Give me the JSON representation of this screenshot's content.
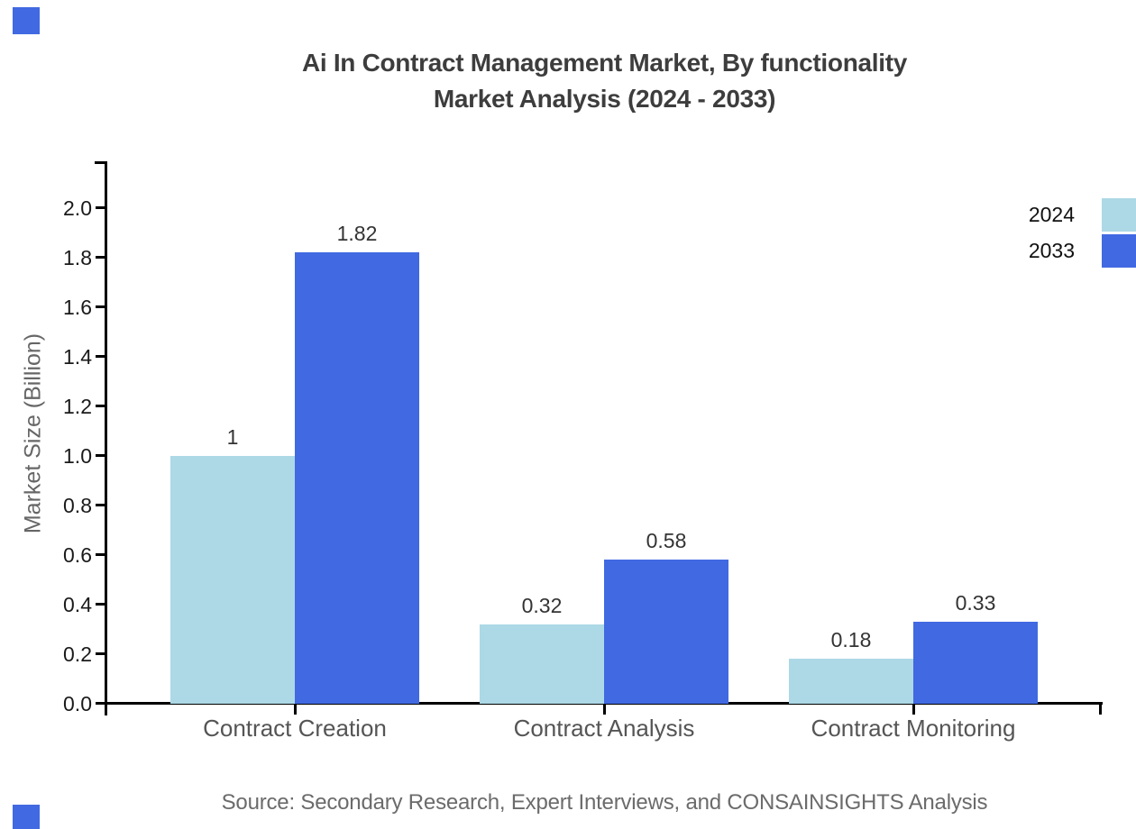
{
  "header": {
    "title_line1": "Ai In Contract Management Market, By functionality",
    "title_line2": "Market Analysis (2024 - 2033)"
  },
  "legend": {
    "position": "right-edge",
    "items": [
      {
        "label": "2024",
        "color": "#add8e6"
      },
      {
        "label": "2033",
        "color": "#4169e1"
      }
    ]
  },
  "footer": {
    "source": "Source: Secondary Research, Expert Interviews, and CONSAINSIGHTS Analysis"
  },
  "decorations": {
    "corner_square_color": "#4169e1"
  },
  "colors": {
    "series_2024": "#add8e6",
    "series_2033": "#4169e1",
    "axis": "#000000",
    "title_text": "#3d3d3d",
    "tick_label_text": "#1a1a1a",
    "category_text": "#555555",
    "value_label_text": "#333333",
    "axis_title_text": "#666666",
    "source_text": "#6b6b6b"
  },
  "chart_data": {
    "type": "bar",
    "title": "Ai In Contract Management Market, By functionality Market Analysis (2024 - 2033)",
    "categories": [
      "Contract Creation",
      "Contract Analysis",
      "Contract Monitoring"
    ],
    "series": [
      {
        "name": "2024",
        "color": "#add8e6",
        "values": [
          1,
          0.32,
          0.18
        ],
        "value_labels": [
          "1",
          "0.32",
          "0.18"
        ]
      },
      {
        "name": "2033",
        "color": "#4169e1",
        "values": [
          1.82,
          0.58,
          0.33
        ],
        "value_labels": [
          "1.82",
          "0.58",
          "0.33"
        ]
      }
    ],
    "xlabel": "",
    "ylabel": "Market Size (Billion)",
    "ylim": [
      0,
      2.0
    ],
    "yticks": [
      {
        "value": 0.0,
        "label": "0.0"
      },
      {
        "value": 0.2,
        "label": "0.2"
      },
      {
        "value": 0.4,
        "label": "0.4"
      },
      {
        "value": 0.6,
        "label": "0.6"
      },
      {
        "value": 0.8,
        "label": "0.8"
      },
      {
        "value": 1.0,
        "label": "1.0"
      },
      {
        "value": 1.2,
        "label": "1.2"
      },
      {
        "value": 1.4,
        "label": "1.4"
      },
      {
        "value": 1.6,
        "label": "1.6"
      },
      {
        "value": 1.8,
        "label": "1.8"
      },
      {
        "value": 2.0,
        "label": "2.0"
      }
    ],
    "grid": false,
    "legend_position": "upper right outside plot"
  }
}
